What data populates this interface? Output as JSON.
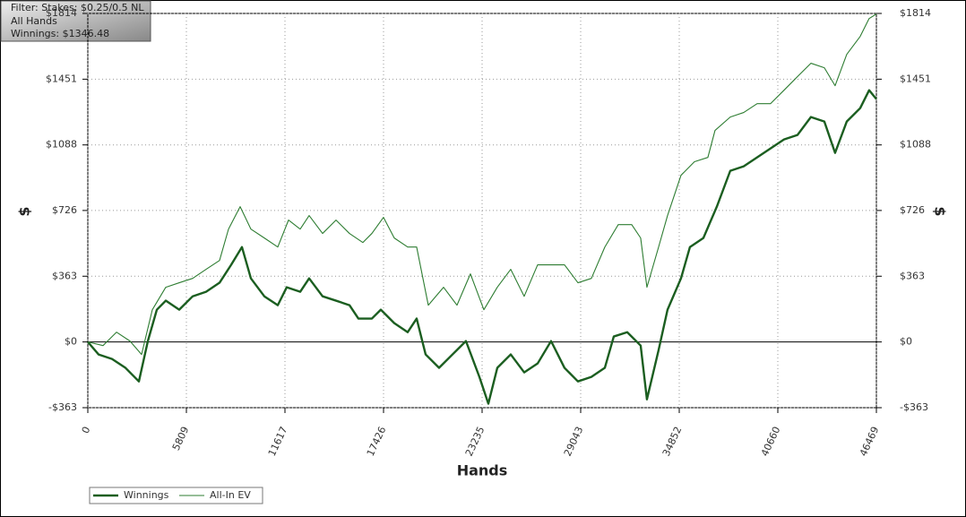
{
  "chart_data": {
    "type": "line",
    "info": [
      "Filter: Stakes: $0.25/0.5 NL",
      "All Hands",
      "Winnings: $1346.48"
    ],
    "xlabel": "Hands",
    "ylabel": "$",
    "xlim": [
      0,
      46469
    ],
    "xticks": [
      0,
      5809,
      11617,
      17426,
      23235,
      29043,
      34852,
      40660,
      46469
    ],
    "ylim": [
      -363,
      1814
    ],
    "yticks": [
      {
        "value": -363,
        "label": "-$363"
      },
      {
        "value": 0,
        "label": "$0"
      },
      {
        "value": 363,
        "label": "$363"
      },
      {
        "value": 726,
        "label": "$726"
      },
      {
        "value": 1088,
        "label": "$1088"
      },
      {
        "value": 1451,
        "label": "$1451"
      },
      {
        "value": 1814,
        "label": "$1814"
      }
    ],
    "grid": true,
    "series": [
      {
        "name": "Winnings",
        "color": "#1b5e20",
        "width": 2.4,
        "x": [
          0,
          634,
          1426,
          2218,
          3010,
          3538,
          4066,
          4594,
          5386,
          6178,
          6970,
          7762,
          8448,
          9082,
          9610,
          10402,
          11194,
          11722,
          12514,
          13042,
          13834,
          14626,
          15418,
          15946,
          16738,
          17266,
          18058,
          18850,
          19378,
          19906,
          20698,
          21490,
          22282,
          23074,
          23602,
          24130,
          24922,
          25714,
          26506,
          27298,
          28090,
          28882,
          29674,
          30466,
          30994,
          31786,
          32578,
          32947,
          33634,
          34162,
          34954,
          35482,
          36274,
          37066,
          37858,
          38650,
          39442,
          40234,
          41026,
          41818,
          42610,
          43402,
          44035,
          44722,
          45514,
          46042,
          46469
        ],
        "values": [
          0,
          -69,
          -94,
          -143,
          -218,
          5,
          178,
          228,
          178,
          252,
          277,
          327,
          426,
          524,
          351,
          252,
          203,
          302,
          277,
          351,
          252,
          228,
          203,
          129,
          129,
          178,
          104,
          54,
          129,
          -69,
          -143,
          -69,
          5,
          -193,
          -341,
          -143,
          -69,
          -168,
          -119,
          5,
          -143,
          -218,
          -193,
          -143,
          30,
          54,
          -20,
          -317,
          -45,
          178,
          351,
          524,
          574,
          747,
          945,
          970,
          1019,
          1069,
          1118,
          1143,
          1242,
          1217,
          1044,
          1217,
          1291,
          1390,
          1341
        ]
      },
      {
        "name": "All-In EV",
        "color": "#2e7d32",
        "width": 1.1,
        "x": [
          0,
          898,
          1690,
          2482,
          3168,
          3802,
          4594,
          5386,
          6178,
          6970,
          7762,
          8290,
          8976,
          9610,
          10402,
          11194,
          11827,
          12514,
          13042,
          13834,
          14626,
          15418,
          16210,
          16738,
          17424,
          18058,
          18850,
          19378,
          20064,
          20962,
          21754,
          22546,
          23338,
          24130,
          24922,
          25714,
          26506,
          27298,
          28090,
          28882,
          29674,
          30466,
          31258,
          32050,
          32578,
          32947,
          33634,
          34162,
          34954,
          35746,
          36538,
          36960,
          37858,
          38650,
          39442,
          40234,
          41026,
          41818,
          42610,
          43402,
          44035,
          44722,
          45514,
          46042,
          46469
        ],
        "values": [
          0,
          -20,
          54,
          5,
          -69,
          178,
          302,
          327,
          351,
          401,
          450,
          623,
          747,
          623,
          574,
          524,
          673,
          623,
          698,
          599,
          673,
          599,
          549,
          599,
          688,
          574,
          524,
          524,
          203,
          302,
          203,
          376,
          178,
          302,
          401,
          252,
          426,
          426,
          426,
          327,
          351,
          524,
          648,
          648,
          574,
          302,
          524,
          698,
          920,
          995,
          1019,
          1168,
          1242,
          1267,
          1316,
          1316,
          1390,
          1465,
          1539,
          1514,
          1415,
          1588,
          1687,
          1786,
          1811
        ]
      }
    ]
  }
}
